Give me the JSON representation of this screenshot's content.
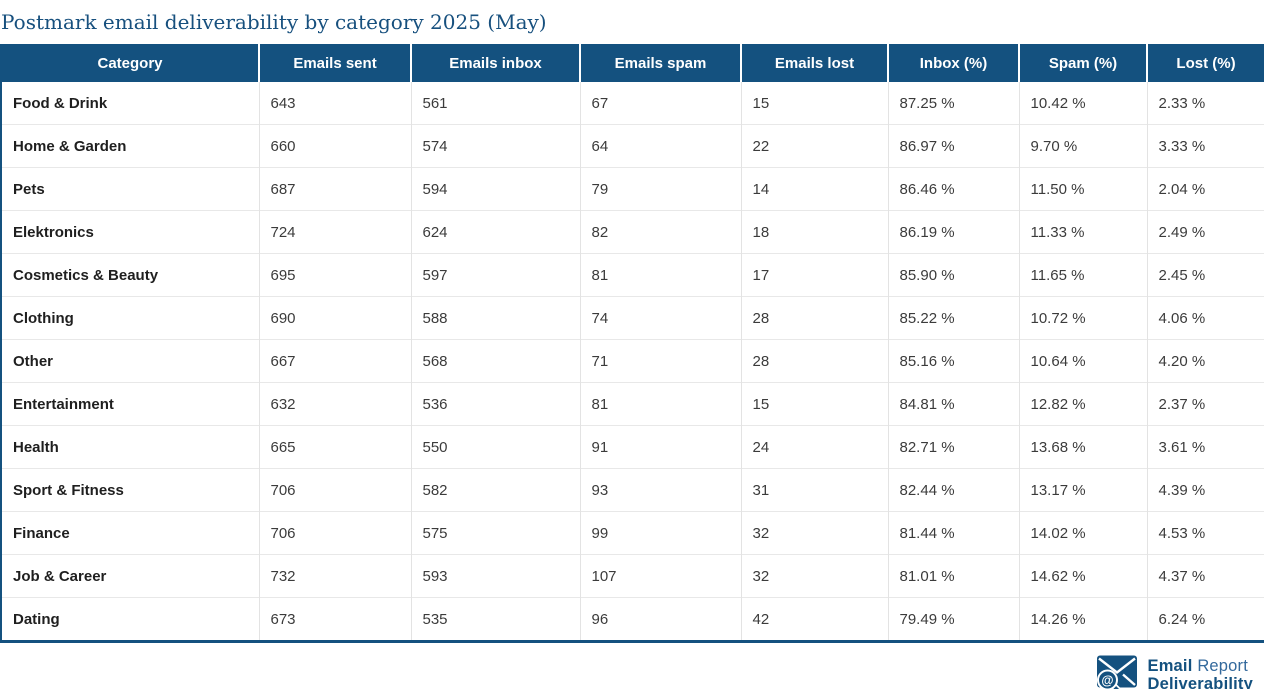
{
  "chart_data": {
    "type": "table",
    "title": "Postmark email deliverability by category 2025 (May)",
    "columns": [
      "Category",
      "Emails sent",
      "Emails inbox",
      "Emails spam",
      "Emails lost",
      "Inbox (%)",
      "Spam (%)",
      "Lost (%)"
    ],
    "rows": [
      [
        "Food & Drink",
        "643",
        "561",
        "67",
        "15",
        "87.25 %",
        "10.42 %",
        "2.33 %"
      ],
      [
        "Home & Garden",
        "660",
        "574",
        "64",
        "22",
        "86.97 %",
        "9.70 %",
        "3.33 %"
      ],
      [
        "Pets",
        "687",
        "594",
        "79",
        "14",
        "86.46 %",
        "11.50 %",
        "2.04 %"
      ],
      [
        "Elektronics",
        "724",
        "624",
        "82",
        "18",
        "86.19 %",
        "11.33 %",
        "2.49 %"
      ],
      [
        "Cosmetics & Beauty",
        "695",
        "597",
        "81",
        "17",
        "85.90 %",
        "11.65 %",
        "2.45 %"
      ],
      [
        "Clothing",
        "690",
        "588",
        "74",
        "28",
        "85.22 %",
        "10.72 %",
        "4.06 %"
      ],
      [
        "Other",
        "667",
        "568",
        "71",
        "28",
        "85.16 %",
        "10.64 %",
        "4.20 %"
      ],
      [
        "Entertainment",
        "632",
        "536",
        "81",
        "15",
        "84.81 %",
        "12.82 %",
        "2.37 %"
      ],
      [
        "Health",
        "665",
        "550",
        "91",
        "24",
        "82.71 %",
        "13.68 %",
        "3.61 %"
      ],
      [
        "Sport & Fitness",
        "706",
        "582",
        "93",
        "31",
        "82.44 %",
        "13.17 %",
        "4.39 %"
      ],
      [
        "Finance",
        "706",
        "575",
        "99",
        "32",
        "81.44 %",
        "14.02 %",
        "4.53 %"
      ],
      [
        "Job & Career",
        "732",
        "593",
        "107",
        "32",
        "81.01 %",
        "14.62 %",
        "4.37 %"
      ],
      [
        "Dating",
        "673",
        "535",
        "96",
        "42",
        "79.49 %",
        "14.26 %",
        "6.24 %"
      ]
    ],
    "layout": {
      "grid": "on",
      "header_position": "top"
    }
  },
  "footer_logo": {
    "line1_bold": "Email",
    "line1_light": "Report",
    "line2": "Deliverability",
    "icon_at": "@"
  },
  "colors": {
    "header_bg": "#14517F",
    "title_text": "#17507E",
    "row_separator": "#E8E8E8",
    "logo_blue": "#14517F"
  }
}
